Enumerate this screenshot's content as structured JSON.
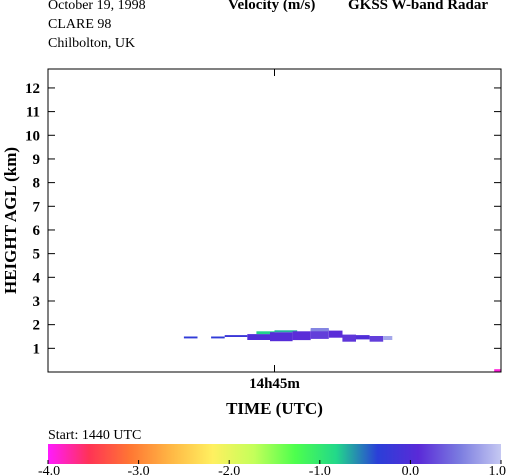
{
  "header": {
    "date": "October  19, 1998",
    "campaign": "CLARE 98",
    "location": "Chilbolton, UK",
    "quantity": "Velocity (m/s)",
    "instrument": "GKSS  W-band Radar"
  },
  "footer": {
    "start": "Start: 1440 UTC"
  },
  "colors": {
    "axis": "#000000",
    "frame": "#000000",
    "background": "#ffffff"
  },
  "chart_data": {
    "type": "heatmap",
    "xlabel": "TIME (UTC)",
    "ylabel": "HEIGHT AGL (km)",
    "ylim": [
      0,
      12.8
    ],
    "xlim": [
      0,
      1
    ],
    "x_ticks": [
      {
        "value": 0.5,
        "label": "14h45m"
      }
    ],
    "y_ticks": [
      1,
      2,
      3,
      4,
      5,
      6,
      7,
      8,
      9,
      10,
      11,
      12
    ],
    "grid": false,
    "colorbar": {
      "vmin": -4.0,
      "vmax": 1.0,
      "ticks": [
        "-4.0",
        "-3.0",
        "-2.0",
        "-1.0",
        "0.0",
        "1.0"
      ],
      "stops": [
        "#ff1aff",
        "#ff3355",
        "#ff7733",
        "#ffb845",
        "#fff060",
        "#c4ff5a",
        "#4dff4d",
        "#22d88a",
        "#2a3fd8",
        "#5a2ad8",
        "#7b7ce0",
        "#c5c8f2"
      ]
    },
    "cells": [
      {
        "t0": 0.3,
        "t1": 0.33,
        "h0": 1.42,
        "h1": 1.5,
        "v": -0.3
      },
      {
        "t0": 0.36,
        "t1": 0.39,
        "h0": 1.42,
        "h1": 1.5,
        "v": -0.3
      },
      {
        "t0": 0.39,
        "t1": 0.44,
        "h0": 1.48,
        "h1": 1.56,
        "v": -0.2
      },
      {
        "t0": 0.44,
        "t1": 0.49,
        "h0": 1.35,
        "h1": 1.6,
        "v": 0.0
      },
      {
        "t0": 0.46,
        "t1": 0.5,
        "h0": 1.6,
        "h1": 1.72,
        "v": -0.8
      },
      {
        "t0": 0.49,
        "t1": 0.54,
        "h0": 1.3,
        "h1": 1.68,
        "v": 0.05
      },
      {
        "t0": 0.5,
        "t1": 0.55,
        "h0": 1.68,
        "h1": 1.76,
        "v": -0.7
      },
      {
        "t0": 0.54,
        "t1": 0.58,
        "h0": 1.35,
        "h1": 1.72,
        "v": 0.1
      },
      {
        "t0": 0.58,
        "t1": 0.62,
        "h0": 1.4,
        "h1": 1.8,
        "v": 0.2
      },
      {
        "t0": 0.58,
        "t1": 0.62,
        "h0": 1.72,
        "h1": 1.86,
        "v": 0.6
      },
      {
        "t0": 0.62,
        "t1": 0.65,
        "h0": 1.45,
        "h1": 1.75,
        "v": 0.1
      },
      {
        "t0": 0.65,
        "t1": 0.68,
        "h0": 1.28,
        "h1": 1.58,
        "v": 0.15
      },
      {
        "t0": 0.68,
        "t1": 0.71,
        "h0": 1.38,
        "h1": 1.56,
        "v": 0.0
      },
      {
        "t0": 0.71,
        "t1": 0.74,
        "h0": 1.28,
        "h1": 1.52,
        "v": 0.2
      },
      {
        "t0": 0.74,
        "t1": 0.76,
        "h0": 1.35,
        "h1": 1.52,
        "v": 0.8
      },
      {
        "t0": 0.985,
        "t1": 1.0,
        "h0": 0.0,
        "h1": 0.12,
        "v": -3.9
      }
    ]
  }
}
